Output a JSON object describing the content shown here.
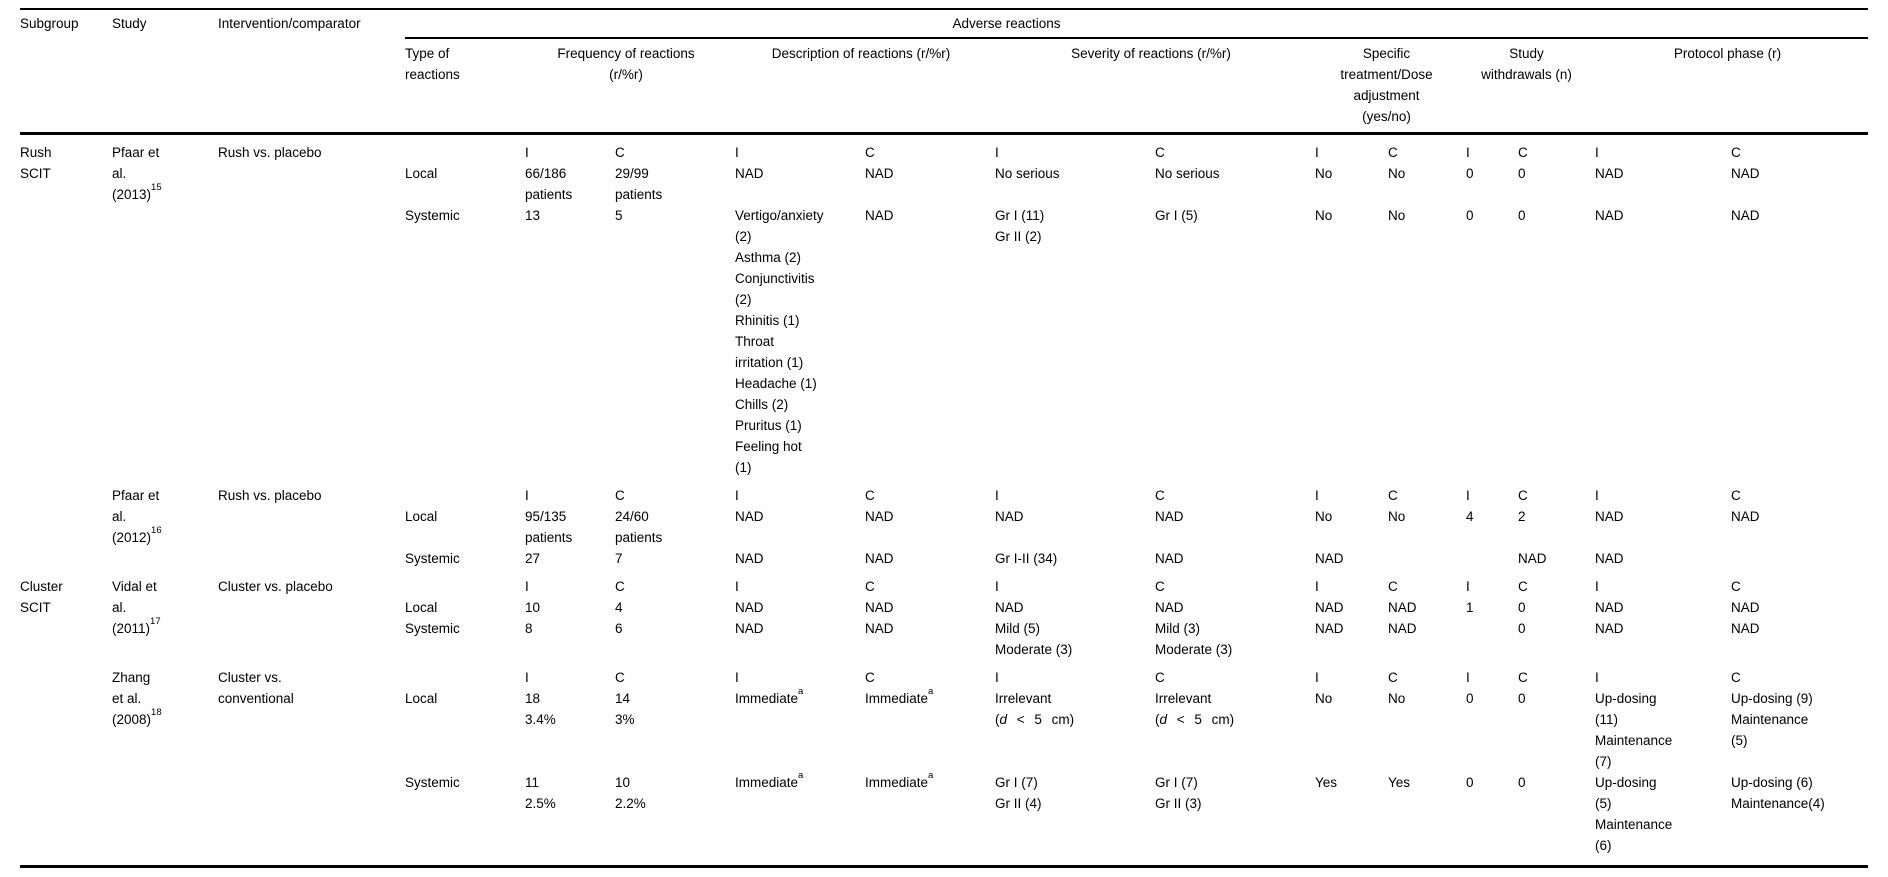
{
  "colors": {
    "text": "#000000",
    "background": "#ffffff",
    "rules": "#000000"
  },
  "table": {
    "header": {
      "subgroup": "Subgroup",
      "study": "Study",
      "intervention": "Intervention/comparator",
      "adverse_reactions": "Adverse reactions",
      "type_of_reactions": [
        "Type of",
        "reactions"
      ],
      "frequency": [
        "Frequency of reactions",
        "(r/%r)"
      ],
      "description": "Description of reactions (r/%r)",
      "severity": "Severity of reactions (r/%r)",
      "specific_treatment": [
        "Specific",
        "treatment/Dose",
        "adjustment",
        "(yes/no)"
      ],
      "study_withdrawals": [
        "Study",
        "withdrawals (n)"
      ],
      "protocol_phase": "Protocol phase (r)"
    },
    "ic_labels": {
      "intervention": "I",
      "comparator": "C"
    },
    "studies": [
      {
        "subgroup": [
          "Rush",
          "SCIT"
        ],
        "study": [
          "Pfaar et",
          "al.",
          {
            "spans": [
              {
                "t": "(2013)"
              },
              {
                "t": "15",
                "sup": true
              }
            ]
          }
        ],
        "intervention": [
          "Rush vs. placebo"
        ],
        "rows": [
          {
            "label": "",
            "cells": [
              [
                "I"
              ],
              [
                "C"
              ],
              [
                "I"
              ],
              [
                "C"
              ],
              [
                "I"
              ],
              [
                "C"
              ],
              [
                "I"
              ],
              [
                "C"
              ],
              [
                "I"
              ],
              [
                "C"
              ],
              [
                "I"
              ],
              [
                "C"
              ]
            ]
          },
          {
            "label": "Local",
            "cells": [
              [
                "66/186",
                "patients"
              ],
              [
                "29/99",
                "patients"
              ],
              [
                "NAD"
              ],
              [
                "NAD"
              ],
              [
                "No serious"
              ],
              [
                "No serious"
              ],
              [
                "No"
              ],
              [
                "No"
              ],
              [
                "0"
              ],
              [
                "0"
              ],
              [
                "NAD"
              ],
              [
                "NAD"
              ]
            ]
          },
          {
            "label": "Systemic",
            "cells": [
              [
                "13"
              ],
              [
                "5"
              ],
              [
                "Vertigo/anxiety",
                "(2)",
                "Asthma (2)",
                "Conjunctivitis",
                "(2)",
                "Rhinitis (1)",
                "Throat",
                "irritation (1)",
                "Headache (1)",
                "Chills (2)",
                "Pruritus (1)",
                "Feeling hot",
                "(1)"
              ],
              [
                "NAD"
              ],
              [
                "Gr I (11)",
                "Gr II (2)"
              ],
              [
                "Gr I (5)"
              ],
              [
                "No"
              ],
              [
                "No"
              ],
              [
                "0"
              ],
              [
                "0"
              ],
              [
                "NAD"
              ],
              [
                "NAD"
              ]
            ]
          }
        ]
      },
      {
        "subgroup": [],
        "study": [
          "Pfaar et",
          "al.",
          {
            "spans": [
              {
                "t": "(2012)"
              },
              {
                "t": "16",
                "sup": true
              }
            ]
          }
        ],
        "intervention": [
          "Rush vs. placebo"
        ],
        "rows": [
          {
            "label": "",
            "cells": [
              [
                "I"
              ],
              [
                "C"
              ],
              [
                "I"
              ],
              [
                "C"
              ],
              [
                "I"
              ],
              [
                "C"
              ],
              [
                "I"
              ],
              [
                "C"
              ],
              [
                "I"
              ],
              [
                "C"
              ],
              [
                "I"
              ],
              [
                "C"
              ]
            ]
          },
          {
            "label": "Local",
            "cells": [
              [
                "95/135",
                "patients"
              ],
              [
                "24/60",
                "patients"
              ],
              [
                "NAD"
              ],
              [
                "NAD"
              ],
              [
                "NAD"
              ],
              [
                "NAD"
              ],
              [
                "No"
              ],
              [
                "No"
              ],
              [
                "4"
              ],
              [
                "2"
              ],
              [
                "NAD"
              ],
              [
                "NAD"
              ]
            ]
          },
          {
            "label": "Systemic",
            "cells": [
              [
                "27"
              ],
              [
                "7"
              ],
              [
                "NAD"
              ],
              [
                "NAD"
              ],
              [
                "Gr I-II (34)"
              ],
              [
                "NAD"
              ],
              [
                "NAD"
              ],
              [],
              [],
              [
                "NAD"
              ],
              [
                "NAD"
              ],
              []
            ]
          }
        ]
      },
      {
        "subgroup": [
          "Cluster",
          "SCIT"
        ],
        "study": [
          "Vidal et",
          "al.",
          {
            "spans": [
              {
                "t": "(2011)"
              },
              {
                "t": "17",
                "sup": true
              }
            ]
          }
        ],
        "intervention": [
          "Cluster vs. placebo"
        ],
        "rows": [
          {
            "label": "",
            "cells": [
              [
                "I"
              ],
              [
                "C"
              ],
              [
                "I"
              ],
              [
                "C"
              ],
              [
                "I"
              ],
              [
                "C"
              ],
              [
                "I"
              ],
              [
                "C"
              ],
              [
                "I"
              ],
              [
                "C"
              ],
              [
                "I"
              ],
              [
                "C"
              ]
            ]
          },
          {
            "label": "Local",
            "cells": [
              [
                "10"
              ],
              [
                "4"
              ],
              [
                "NAD"
              ],
              [
                "NAD"
              ],
              [
                "NAD"
              ],
              [
                "NAD"
              ],
              [
                "NAD"
              ],
              [
                "NAD"
              ],
              [
                "1"
              ],
              [
                "0"
              ],
              [
                "NAD"
              ],
              [
                "NAD"
              ]
            ]
          },
          {
            "label": "Systemic",
            "cells": [
              [
                "8"
              ],
              [
                "6"
              ],
              [
                "NAD"
              ],
              [
                "NAD"
              ],
              [
                "Mild (5)",
                "Moderate (3)"
              ],
              [
                "Mild (3)",
                "Moderate (3)"
              ],
              [
                "NAD"
              ],
              [
                "NAD"
              ],
              [],
              [
                "0"
              ],
              [
                "NAD"
              ],
              [
                "NAD"
              ]
            ]
          }
        ]
      },
      {
        "subgroup": [],
        "study": [
          "Zhang",
          "et al.",
          {
            "spans": [
              {
                "t": "(2008)"
              },
              {
                "t": "18",
                "sup": true
              }
            ]
          }
        ],
        "intervention": [
          "Cluster vs.",
          "conventional"
        ],
        "rows": [
          {
            "label": "",
            "cells": [
              [
                "I"
              ],
              [
                "C"
              ],
              [
                "I"
              ],
              [
                "C"
              ],
              [
                "I"
              ],
              [
                "C"
              ],
              [
                "I"
              ],
              [
                "C"
              ],
              [
                "I"
              ],
              [
                "C"
              ],
              [
                "I"
              ],
              [
                "C"
              ]
            ]
          },
          {
            "label": "Local",
            "cells": [
              [
                "18",
                "3.4%"
              ],
              [
                "14",
                "3%"
              ],
              [
                {
                  "spans": [
                    {
                      "t": "Immediate"
                    },
                    {
                      "t": "a",
                      "sup": true
                    }
                  ]
                }
              ],
              [
                {
                  "spans": [
                    {
                      "t": "Immediate"
                    },
                    {
                      "t": "a",
                      "sup": true
                    }
                  ]
                }
              ],
              [
                "Irrelevant",
                {
                  "ws": true,
                  "spans": [
                    {
                      "t": "("
                    },
                    {
                      "t": "d",
                      "i": true
                    },
                    {
                      "t": " < 5 cm)"
                    }
                  ]
                }
              ],
              [
                "Irrelevant",
                {
                  "ws": true,
                  "spans": [
                    {
                      "t": "("
                    },
                    {
                      "t": "d",
                      "i": true
                    },
                    {
                      "t": " < 5 cm)"
                    }
                  ]
                }
              ],
              [
                "No"
              ],
              [
                "No"
              ],
              [
                "0"
              ],
              [
                "0"
              ],
              [
                "Up-dosing",
                "(11)",
                "Maintenance",
                "(7)"
              ],
              [
                "Up-dosing (9)",
                "Maintenance",
                "(5)"
              ]
            ]
          },
          {
            "label": "Systemic",
            "cells": [
              [
                "11",
                "2.5%"
              ],
              [
                "10",
                "2.2%"
              ],
              [
                {
                  "spans": [
                    {
                      "t": "Immediate"
                    },
                    {
                      "t": "a",
                      "sup": true
                    }
                  ]
                }
              ],
              [
                {
                  "spans": [
                    {
                      "t": "Immediate"
                    },
                    {
                      "t": "a",
                      "sup": true
                    }
                  ]
                }
              ],
              [
                "Gr I (7)",
                "Gr II (4)"
              ],
              [
                "Gr I (7)",
                "Gr II (3)"
              ],
              [
                "Yes"
              ],
              [
                "Yes"
              ],
              [
                "0"
              ],
              [
                "0"
              ],
              [
                "Up-dosing",
                "(5)",
                "Maintenance",
                "(6)"
              ],
              [
                "Up-dosing (6)",
                "Maintenance(4)"
              ]
            ]
          }
        ]
      }
    ]
  }
}
